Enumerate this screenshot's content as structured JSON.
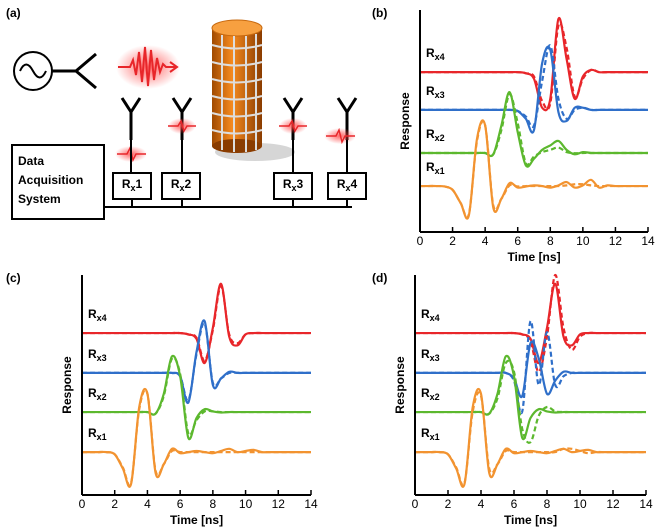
{
  "diagram": {
    "label": "(a)",
    "daq_lines": [
      "Data",
      "Acquisition",
      "System"
    ],
    "receivers": [
      "Rx1",
      "Rx2",
      "Rx3",
      "Rx4"
    ]
  },
  "chart_data": [
    {
      "type": "line",
      "label": "(b)",
      "xlabel": "Time [ns]",
      "ylabel": "Response",
      "xlim": [
        0,
        14
      ],
      "xticks": [
        0,
        2,
        4,
        6,
        8,
        10,
        12,
        14
      ],
      "ylim": [
        0,
        10
      ],
      "x": [
        0,
        0.5,
        1,
        1.5,
        2,
        2.5,
        3,
        3.5,
        4,
        4.5,
        5,
        5.5,
        6,
        6.5,
        7,
        7.5,
        8,
        8.5,
        9,
        9.5,
        10,
        10.5,
        11,
        11.5,
        12,
        12.5,
        13,
        13.5,
        14
      ],
      "series": [
        {
          "name": "Rx4",
          "color": "#e8262a",
          "values": [
            7.2,
            7.2,
            7.2,
            7.2,
            7.2,
            7.2,
            7.2,
            7.2,
            7.2,
            7.2,
            7.2,
            7.2,
            7.2,
            7.15,
            6.9,
            5.6,
            6.0,
            9.6,
            7.8,
            6.0,
            7.0,
            7.3,
            7.2,
            7.2,
            7.2,
            7.2,
            7.2,
            7.2,
            7.2
          ],
          "dashed_values": [
            7.2,
            7.2,
            7.2,
            7.2,
            7.2,
            7.2,
            7.2,
            7.2,
            7.2,
            7.2,
            7.2,
            7.2,
            7.2,
            7.15,
            7.0,
            5.9,
            5.8,
            9.3,
            8.3,
            6.1,
            6.9,
            7.3,
            7.2,
            7.2,
            7.2,
            7.2,
            7.2,
            7.2,
            7.2
          ]
        },
        {
          "name": "Rx3",
          "color": "#2f6fc9",
          "values": [
            5.5,
            5.5,
            5.5,
            5.5,
            5.5,
            5.5,
            5.5,
            5.5,
            5.5,
            5.5,
            5.5,
            5.5,
            5.45,
            5.1,
            4.6,
            7.6,
            8.2,
            5.4,
            5.0,
            5.6,
            5.6,
            5.5,
            5.5,
            5.5,
            5.5,
            5.5,
            5.5,
            5.5,
            5.5
          ],
          "dashed_values": [
            5.5,
            5.5,
            5.5,
            5.5,
            5.5,
            5.5,
            5.5,
            5.5,
            5.5,
            5.5,
            5.5,
            5.5,
            5.45,
            5.2,
            4.8,
            6.8,
            8.4,
            6.0,
            5.1,
            5.5,
            5.6,
            5.5,
            5.5,
            5.5,
            5.5,
            5.5,
            5.5,
            5.5,
            5.5
          ]
        },
        {
          "name": "Rx2",
          "color": "#5cb82e",
          "values": [
            3.56,
            3.56,
            3.56,
            3.56,
            3.56,
            3.56,
            3.56,
            3.56,
            3.56,
            3.5,
            4.8,
            6.3,
            4.5,
            3.0,
            3.3,
            3.7,
            3.9,
            4.1,
            3.7,
            3.5,
            3.6,
            3.56,
            3.56,
            3.56,
            3.56,
            3.56,
            3.56,
            3.56,
            3.56
          ],
          "dashed_values": [
            3.56,
            3.56,
            3.56,
            3.56,
            3.56,
            3.56,
            3.56,
            3.56,
            3.56,
            3.5,
            4.6,
            6.2,
            4.9,
            3.1,
            3.4,
            3.6,
            3.7,
            3.8,
            3.6,
            3.55,
            3.56,
            3.56,
            3.56,
            3.56,
            3.56,
            3.56,
            3.56,
            3.56,
            3.56
          ]
        },
        {
          "name": "Rx1",
          "color": "#f29330",
          "values": [
            2.07,
            2.07,
            2.07,
            2.05,
            1.9,
            1.3,
            0.75,
            4.2,
            4.8,
            1.1,
            1.5,
            2.2,
            2.0,
            2.05,
            2.1,
            2.07,
            2.0,
            2.1,
            2.25,
            2.0,
            2.1,
            2.35,
            2.0,
            2.1,
            2.07,
            2.07,
            2.07,
            2.07,
            2.07
          ],
          "dashed_values": [
            2.07,
            2.07,
            2.07,
            2.05,
            1.9,
            1.3,
            0.8,
            4.1,
            4.8,
            1.2,
            1.5,
            2.1,
            2.05,
            2.07,
            2.07,
            2.07,
            2.07,
            2.07,
            2.1,
            2.15,
            2.15,
            2.1,
            2.07,
            2.07,
            2.07,
            2.07,
            2.07,
            2.07,
            2.07
          ]
        }
      ]
    },
    {
      "type": "line",
      "label": "(c)",
      "xlabel": "Time [ns]",
      "ylabel": "Response",
      "xlim": [
        0,
        14
      ],
      "xticks": [
        0,
        2,
        4,
        6,
        8,
        10,
        12,
        14
      ],
      "ylim": [
        0,
        10
      ],
      "x": [
        0,
        0.5,
        1,
        1.5,
        2,
        2.5,
        3,
        3.5,
        4,
        4.5,
        5,
        5.5,
        6,
        6.5,
        7,
        7.5,
        8,
        8.5,
        9,
        9.5,
        10,
        10.5,
        11,
        11.5,
        12,
        12.5,
        13,
        13.5,
        14
      ],
      "series": [
        {
          "name": "Rx4",
          "color": "#e8262a",
          "values": [
            7.36,
            7.36,
            7.36,
            7.36,
            7.36,
            7.36,
            7.36,
            7.36,
            7.36,
            7.36,
            7.36,
            7.36,
            7.36,
            7.3,
            7.1,
            6.0,
            7.6,
            9.6,
            7.2,
            6.8,
            7.3,
            7.36,
            7.36,
            7.36,
            7.36,
            7.36,
            7.36,
            7.36,
            7.36
          ],
          "dashed_values": [
            7.36,
            7.36,
            7.36,
            7.36,
            7.36,
            7.36,
            7.36,
            7.36,
            7.36,
            7.36,
            7.36,
            7.36,
            7.36,
            7.3,
            7.15,
            6.1,
            7.5,
            9.5,
            7.3,
            6.9,
            7.3,
            7.36,
            7.36,
            7.36,
            7.36,
            7.36,
            7.36,
            7.36,
            7.36
          ]
        },
        {
          "name": "Rx3",
          "color": "#2f6fc9",
          "values": [
            5.55,
            5.55,
            5.55,
            5.55,
            5.55,
            5.55,
            5.55,
            5.55,
            5.55,
            5.55,
            5.55,
            5.55,
            5.4,
            4.2,
            6.5,
            7.9,
            5.0,
            5.3,
            5.6,
            5.55,
            5.55,
            5.55,
            5.55,
            5.55,
            5.55,
            5.55,
            5.55,
            5.55,
            5.55
          ],
          "dashed_values": [
            5.55,
            5.55,
            5.55,
            5.55,
            5.55,
            5.55,
            5.55,
            5.55,
            5.55,
            5.55,
            5.55,
            5.55,
            5.4,
            4.3,
            6.4,
            7.8,
            5.1,
            5.3,
            5.55,
            5.55,
            5.55,
            5.55,
            5.55,
            5.55,
            5.55,
            5.55,
            5.55,
            5.55,
            5.55
          ]
        },
        {
          "name": "Rx2",
          "color": "#5cb82e",
          "values": [
            3.77,
            3.77,
            3.77,
            3.77,
            3.77,
            3.77,
            3.77,
            3.77,
            3.77,
            3.7,
            4.6,
            6.3,
            5.4,
            2.6,
            3.5,
            3.9,
            3.8,
            3.75,
            3.77,
            3.77,
            3.77,
            3.77,
            3.77,
            3.77,
            3.77,
            3.77,
            3.77,
            3.77,
            3.77
          ],
          "dashed_values": [
            3.77,
            3.77,
            3.77,
            3.77,
            3.77,
            3.77,
            3.77,
            3.77,
            3.77,
            3.7,
            4.5,
            6.2,
            5.5,
            2.8,
            3.4,
            3.8,
            3.8,
            3.77,
            3.77,
            3.77,
            3.77,
            3.77,
            3.77,
            3.77,
            3.77,
            3.77,
            3.77,
            3.77,
            3.77
          ]
        },
        {
          "name": "Rx1",
          "color": "#f29330",
          "values": [
            1.95,
            1.95,
            1.95,
            1.95,
            1.85,
            1.2,
            0.5,
            4.0,
            4.6,
            1.0,
            1.4,
            2.1,
            1.9,
            1.95,
            2.0,
            1.95,
            1.9,
            2.0,
            2.1,
            1.95,
            2.0,
            2.05,
            1.95,
            1.95,
            1.95,
            1.95,
            1.95,
            1.95,
            1.95
          ],
          "dashed_values": [
            1.95,
            1.95,
            1.95,
            1.95,
            1.85,
            1.25,
            0.55,
            3.9,
            4.6,
            1.1,
            1.4,
            2.0,
            1.95,
            1.95,
            1.95,
            1.95,
            1.95,
            1.95,
            1.95,
            1.95,
            1.95,
            1.95,
            1.95,
            1.95,
            1.95,
            1.95,
            1.95,
            1.95,
            1.95
          ]
        }
      ]
    },
    {
      "type": "line",
      "label": "(d)",
      "xlabel": "Time [ns]",
      "ylabel": "Response",
      "xlim": [
        0,
        14
      ],
      "xticks": [
        0,
        2,
        4,
        6,
        8,
        10,
        12,
        14
      ],
      "ylim": [
        0,
        10
      ],
      "x": [
        0,
        0.5,
        1,
        1.5,
        2,
        2.5,
        3,
        3.5,
        4,
        4.5,
        5,
        5.5,
        6,
        6.5,
        7,
        7.5,
        8,
        8.5,
        9,
        9.5,
        10,
        10.5,
        11,
        11.5,
        12,
        12.5,
        13,
        13.5,
        14
      ],
      "series": [
        {
          "name": "Rx4",
          "color": "#e8262a",
          "values": [
            7.36,
            7.36,
            7.36,
            7.36,
            7.36,
            7.36,
            7.36,
            7.36,
            7.36,
            7.36,
            7.36,
            7.36,
            7.36,
            7.3,
            7.1,
            6.0,
            7.6,
            9.6,
            7.2,
            6.8,
            7.3,
            7.36,
            7.36,
            7.36,
            7.36,
            7.36,
            7.36,
            7.36,
            7.36
          ],
          "dashed_values": [
            7.36,
            7.36,
            7.36,
            7.36,
            7.36,
            7.36,
            7.36,
            7.36,
            7.36,
            7.36,
            7.36,
            7.36,
            7.36,
            7.3,
            7.0,
            5.6,
            7.2,
            10.0,
            7.6,
            6.6,
            7.2,
            7.36,
            7.36,
            7.36,
            7.36,
            7.36,
            7.36,
            7.36,
            7.36
          ]
        },
        {
          "name": "Rx3",
          "color": "#2f6fc9",
          "values": [
            5.55,
            5.55,
            5.55,
            5.55,
            5.55,
            5.55,
            5.55,
            5.55,
            5.55,
            5.55,
            5.55,
            5.55,
            5.3,
            4.5,
            6.9,
            6.2,
            4.6,
            5.2,
            5.6,
            5.55,
            5.55,
            5.55,
            5.55,
            5.55,
            5.55,
            5.55,
            5.55,
            5.55,
            5.55
          ],
          "dashed_values": [
            5.55,
            5.55,
            5.55,
            5.55,
            5.55,
            5.55,
            5.55,
            5.55,
            5.55,
            5.55,
            5.55,
            5.55,
            5.2,
            3.8,
            7.9,
            5.0,
            7.4,
            5.0,
            5.4,
            5.55,
            5.55,
            5.55,
            5.55,
            5.55,
            5.55,
            5.55,
            5.55,
            5.55,
            5.55
          ]
        },
        {
          "name": "Rx2",
          "color": "#5cb82e",
          "values": [
            3.77,
            3.77,
            3.77,
            3.77,
            3.77,
            3.77,
            3.77,
            3.77,
            3.77,
            3.7,
            4.6,
            6.3,
            5.4,
            2.6,
            3.5,
            3.9,
            3.8,
            3.75,
            3.77,
            3.77,
            3.77,
            3.77,
            3.77,
            3.77,
            3.77,
            3.77,
            3.77,
            3.77,
            3.77
          ],
          "dashed_values": [
            3.77,
            3.77,
            3.77,
            3.77,
            3.77,
            3.77,
            3.77,
            3.77,
            3.77,
            3.7,
            4.4,
            6.0,
            5.6,
            3.0,
            2.4,
            3.6,
            4.0,
            3.8,
            3.77,
            3.77,
            3.77,
            3.77,
            3.77,
            3.77,
            3.77,
            3.77,
            3.77,
            3.77,
            3.77
          ]
        },
        {
          "name": "Rx1",
          "color": "#f29330",
          "values": [
            1.95,
            1.95,
            1.95,
            1.95,
            1.85,
            1.2,
            0.5,
            4.0,
            4.6,
            1.0,
            1.4,
            2.1,
            1.9,
            1.95,
            2.0,
            1.95,
            1.9,
            2.0,
            2.1,
            1.95,
            2.0,
            2.05,
            1.95,
            1.95,
            1.95,
            1.95,
            1.95,
            1.95,
            1.95
          ],
          "dashed_values": [
            1.95,
            1.95,
            1.95,
            1.95,
            1.85,
            1.25,
            0.55,
            3.8,
            4.5,
            1.2,
            1.4,
            2.0,
            1.95,
            1.95,
            1.95,
            1.95,
            1.95,
            1.95,
            2.1,
            2.1,
            2.0,
            1.9,
            1.95,
            1.95,
            1.95,
            1.95,
            1.95,
            1.95,
            1.95
          ]
        }
      ]
    }
  ]
}
